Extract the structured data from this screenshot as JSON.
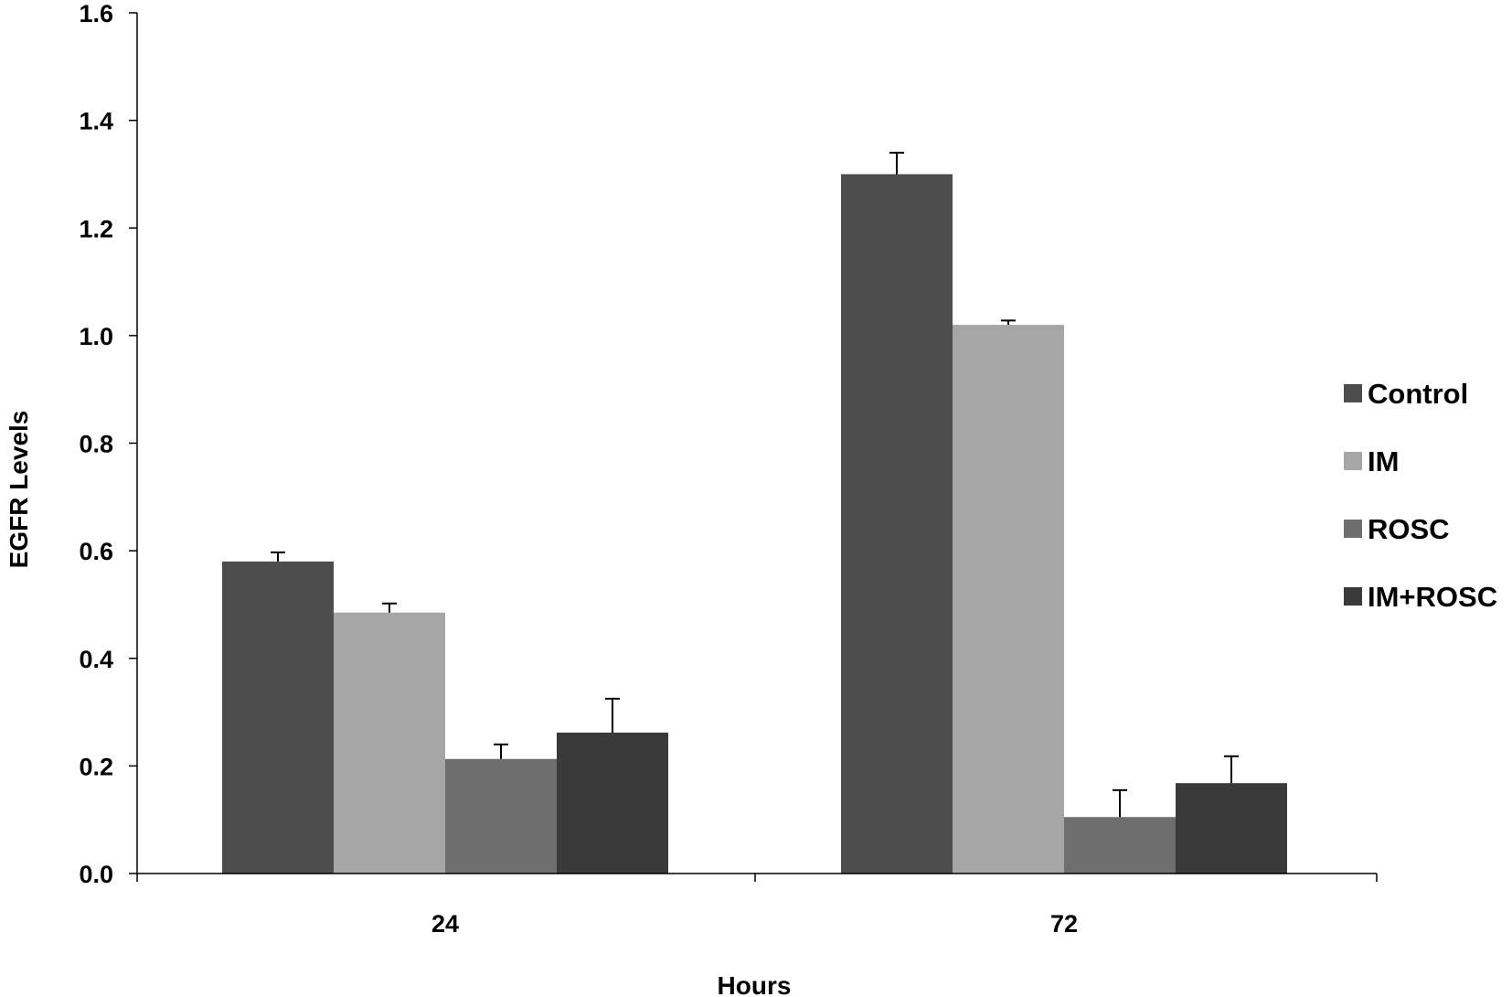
{
  "chart_data": {
    "type": "bar",
    "title": "",
    "xlabel": "Hours",
    "ylabel": "EGFR Levels",
    "categories": [
      "24",
      "72"
    ],
    "ylim": [
      0,
      1.6
    ],
    "yticks": [
      0.0,
      0.2,
      0.4,
      0.6,
      0.8,
      1.0,
      1.2,
      1.4,
      1.6
    ],
    "ytick_labels": [
      "0.0",
      "0.2",
      "0.4",
      "0.6",
      "0.8",
      "1.0",
      "1.2",
      "1.4",
      "1.6"
    ],
    "grid": false,
    "legend_position": "right",
    "series": [
      {
        "name": "Control",
        "color": "#4d4d4d",
        "values": [
          0.58,
          1.3
        ],
        "errors": [
          0.017,
          0.04
        ]
      },
      {
        "name": "IM",
        "color": "#a6a6a6",
        "values": [
          0.485,
          1.02
        ],
        "errors": [
          0.017,
          0.008
        ]
      },
      {
        "name": "ROSC",
        "color": "#6e6e6e",
        "values": [
          0.213,
          0.105
        ],
        "errors": [
          0.027,
          0.05
        ]
      },
      {
        "name": "IM+ROSC",
        "color": "#3a3a3a",
        "values": [
          0.262,
          0.168
        ],
        "errors": [
          0.063,
          0.05
        ]
      }
    ]
  }
}
